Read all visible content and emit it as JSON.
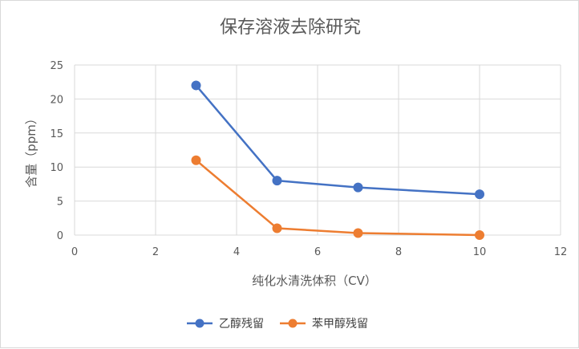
{
  "chart_data": {
    "type": "scatter",
    "title": "保存溶液去除研究",
    "xlabel": "纯化水清洗体积（CV）",
    "ylabel": "含量（ppm）",
    "xlim": [
      0,
      12
    ],
    "ylim": [
      0,
      25
    ],
    "xticks": [
      0,
      2,
      4,
      6,
      8,
      10,
      12
    ],
    "yticks": [
      0,
      5,
      10,
      15,
      20,
      25
    ],
    "grid": "vertical-and-horizontal",
    "legend_position": "bottom",
    "series": [
      {
        "name": "乙醇残留",
        "color": "#4472C4",
        "x": [
          3,
          5,
          7,
          10
        ],
        "y": [
          22,
          8,
          7,
          6
        ]
      },
      {
        "name": "苯甲醇残留",
        "color": "#ED7D31",
        "x": [
          3,
          5,
          7,
          10
        ],
        "y": [
          11,
          1,
          0.3,
          0
        ]
      }
    ]
  }
}
